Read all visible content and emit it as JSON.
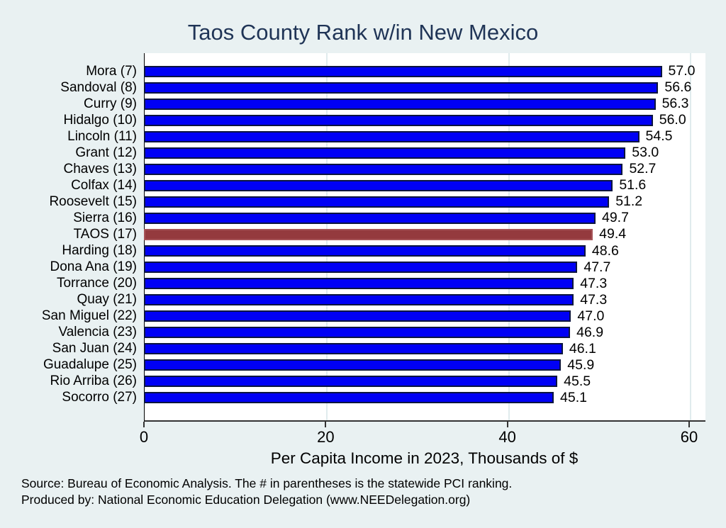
{
  "title": "Taos County Rank w/in New Mexico",
  "chart_data": {
    "type": "bar",
    "orientation": "horizontal",
    "title": "Taos County Rank w/in New Mexico",
    "categories": [
      "Mora  (7)",
      "Sandoval  (8)",
      "Curry  (9)",
      "Hidalgo (10)",
      "Lincoln (11)",
      "Grant (12)",
      "Chaves (13)",
      "Colfax (14)",
      "Roosevelt (15)",
      "Sierra (16)",
      "TAOS (17)",
      "Harding (18)",
      "Dona Ana (19)",
      "Torrance (20)",
      "Quay (21)",
      "San Miguel (22)",
      "Valencia (23)",
      "San Juan (24)",
      "Guadalupe (25)",
      "Rio Arriba (26)",
      "Socorro (27)"
    ],
    "values": [
      57.0,
      56.6,
      56.3,
      56.0,
      54.5,
      53.0,
      52.7,
      51.6,
      51.2,
      49.7,
      49.4,
      48.6,
      47.7,
      47.3,
      47.3,
      47.0,
      46.9,
      46.1,
      45.9,
      45.5,
      45.1
    ],
    "value_labels": [
      "57.0",
      "56.6",
      "56.3",
      "56.0",
      "54.5",
      "53.0",
      "52.7",
      "51.6",
      "51.2",
      "49.7",
      "49.4",
      "48.6",
      "47.7",
      "47.3",
      "47.3",
      "47.0",
      "46.9",
      "46.1",
      "45.9",
      "45.5",
      "45.1"
    ],
    "highlight_index": 10,
    "highlight_category": "TAOS (17)",
    "xlabel": "Per Capita Income in 2023, Thousands of $",
    "ylabel": "",
    "xticks": [
      0,
      20,
      40,
      60
    ],
    "xlim": [
      0,
      61.7
    ],
    "grid": "vertical gridlines at x ticks, behind bars",
    "legend": "none",
    "colors": {
      "figure_background": "#e9f1f2",
      "plot_background": "#ffffff",
      "gridline": "#e0ebed",
      "bar_fill": "#0000f5",
      "bar_border": "#0c1540",
      "highlight_fill": "#943a3e",
      "highlight_border": "#a65458",
      "title_text": "#1f3456",
      "axis_text": "#000000"
    }
  },
  "footer": {
    "line1": "Source: Bureau of Economic Analysis. The # in parentheses is the statewide PCI ranking.",
    "line2": "Produced by: National Economic Education Delegation (www.NEEDelegation.org)"
  }
}
